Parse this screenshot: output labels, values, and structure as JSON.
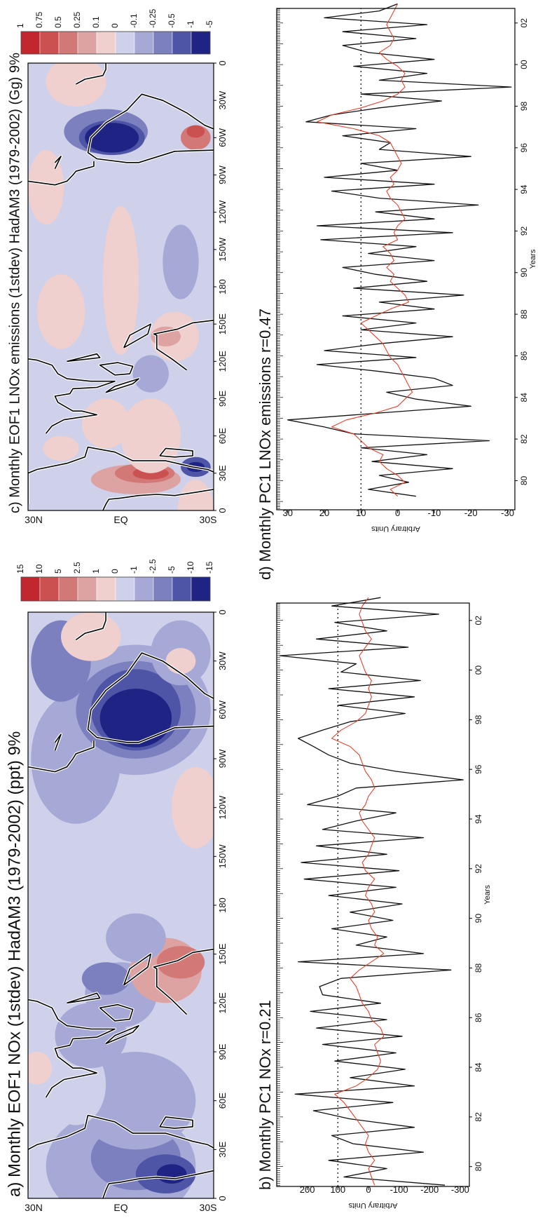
{
  "chart_data": [
    {
      "type": "map",
      "title": "a) Monthly  EOF1 NOx (1stdev) HadAM3 (1979-2002) (ppt)  9%",
      "lat_labels": [
        "30N",
        "EQ",
        "30S"
      ],
      "lon_labels": [
        "0",
        "30E",
        "60E",
        "90E",
        "120E",
        "150E",
        "180",
        "150W",
        "120W",
        "90W",
        "60W",
        "30W",
        "0"
      ],
      "colorbar": {
        "labels": [
          "15",
          "10",
          "5",
          "2.5",
          "1",
          "0",
          "-1",
          "-2.5",
          "-5",
          "-10",
          "-15"
        ],
        "colors": [
          "#c1272d",
          "#cb5150",
          "#d27877",
          "#dda3a2",
          "#efd0cf",
          "#cfd1ea",
          "#a6a8d6",
          "#7c80bf",
          "#4f55a6",
          "#1f2484"
        ]
      }
    },
    {
      "type": "line",
      "title": "b) Monthly  PC1 NOx r=0.21",
      "xlabel": "Years",
      "ylabel": "Arbitrary Units",
      "xlim": [
        1979.2,
        2002.7
      ],
      "ylim": [
        -330,
        300
      ],
      "xticks": [
        {
          "value": 1980,
          "label": "80"
        },
        {
          "value": 1982,
          "label": "82"
        },
        {
          "value": 1984,
          "label": "84"
        },
        {
          "value": 1986,
          "label": "86"
        },
        {
          "value": 1988,
          "label": "88"
        },
        {
          "value": 1990,
          "label": "90"
        },
        {
          "value": 1992,
          "label": "92"
        },
        {
          "value": 1994,
          "label": "94"
        },
        {
          "value": 1996,
          "label": "96"
        },
        {
          "value": 1998,
          "label": "98"
        },
        {
          "value": 2000,
          "label": "00"
        },
        {
          "value": 2002,
          "label": "02"
        }
      ],
      "yticks": [
        200,
        100,
        0,
        -100,
        -200,
        -300
      ],
      "hline": 100,
      "x": [
        1979.25,
        1979.58,
        1979.92,
        1980.25,
        1980.58,
        1980.92,
        1981.25,
        1981.58,
        1981.92,
        1982.25,
        1982.58,
        1982.92,
        1983.25,
        1983.58,
        1983.92,
        1984.25,
        1984.58,
        1984.92,
        1985.25,
        1985.58,
        1985.92,
        1986.25,
        1986.58,
        1986.92,
        1987.25,
        1987.58,
        1987.92,
        1988.25,
        1988.58,
        1988.92,
        1989.25,
        1989.58,
        1989.92,
        1990.25,
        1990.58,
        1990.92,
        1991.25,
        1991.58,
        1991.92,
        1992.25,
        1992.58,
        1992.92,
        1993.25,
        1993.58,
        1993.92,
        1994.25,
        1994.58,
        1994.92,
        1995.25,
        1995.58,
        1995.92,
        1996.25,
        1996.58,
        1996.92,
        1997.25,
        1997.58,
        1997.92,
        1998.25,
        1998.58,
        1998.92,
        1999.25,
        1999.58,
        1999.92,
        2000.25,
        2000.58,
        2000.92,
        2001.25,
        2001.58,
        2001.92,
        2002.25,
        2002.58,
        2002.92
      ],
      "series": [
        {
          "color": "#111111",
          "values": [
            -250,
            80,
            -60,
            130,
            -180,
            50,
            120,
            -150,
            60,
            180,
            -80,
            240,
            -150,
            60,
            -120,
            110,
            -90,
            150,
            -110,
            170,
            -60,
            190,
            -40,
            150,
            160,
            90,
            -270,
            230,
            -180,
            40,
            -60,
            120,
            -80,
            60,
            -110,
            130,
            -90,
            210,
            -100,
            220,
            -60,
            170,
            -180,
            150,
            40,
            -90,
            200,
            100,
            40,
            -310,
            -90,
            60,
            130,
            180,
            230,
            150,
            60,
            -120,
            100,
            -150,
            130,
            -170,
            90,
            40,
            290,
            -130,
            170,
            -60,
            110,
            -230,
            120,
            -40
          ]
        },
        {
          "color": "#e0452f",
          "values": [
            -20,
            -10,
            0,
            -20,
            0,
            10,
            0,
            20,
            40,
            60,
            80,
            110,
            40,
            0,
            -30,
            -40,
            -30,
            -20,
            -50,
            -40,
            -10,
            0,
            20,
            30,
            40,
            60,
            30,
            -10,
            -50,
            -20,
            -30,
            -10,
            0,
            -20,
            -10,
            10,
            0,
            -20,
            10,
            20,
            0,
            -10,
            -20,
            0,
            20,
            30,
            10,
            0,
            -20,
            -10,
            10,
            20,
            30,
            60,
            120,
            90,
            40,
            10,
            0,
            -10,
            0,
            -10,
            10,
            20,
            30,
            10,
            -10,
            10,
            20,
            30,
            20,
            0
          ]
        }
      ]
    },
    {
      "type": "map",
      "title": "c) Monthly  EOF1 LNOx emissions (1stdev) HadAM3 (1979-2002) (Gg)  9%",
      "lat_labels": [
        "30N",
        "EQ",
        "30S"
      ],
      "lon_labels": [
        "0",
        "30E",
        "60E",
        "90E",
        "120E",
        "150E",
        "180",
        "150W",
        "120W",
        "90W",
        "60W",
        "30W",
        "0"
      ],
      "colorbar": {
        "labels": [
          "1",
          "0.75",
          "0.5",
          "0.25",
          "0.1",
          "0",
          "-0.1",
          "-0.25",
          "-0.5",
          "-1",
          "-5"
        ],
        "colors": [
          "#c1272d",
          "#cb5150",
          "#d27877",
          "#dda3a2",
          "#efd0cf",
          "#cfd1ea",
          "#a6a8d6",
          "#7c80bf",
          "#4f55a6",
          "#1f2484"
        ]
      }
    },
    {
      "type": "line",
      "title": "d) Monthly  PC1 LNOx emissions r=0.47",
      "xlabel": "Years",
      "ylabel": "Arbitrary Units",
      "xlim": [
        1978.6,
        2002.7
      ],
      "ylim": [
        -32,
        33
      ],
      "xticks": [
        {
          "value": 1980,
          "label": "80"
        },
        {
          "value": 1982,
          "label": "82"
        },
        {
          "value": 1984,
          "label": "84"
        },
        {
          "value": 1986,
          "label": "86"
        },
        {
          "value": 1988,
          "label": "88"
        },
        {
          "value": 1990,
          "label": "90"
        },
        {
          "value": 1992,
          "label": "92"
        },
        {
          "value": 1994,
          "label": "94"
        },
        {
          "value": 1996,
          "label": "96"
        },
        {
          "value": 1998,
          "label": "98"
        },
        {
          "value": 2000,
          "label": "00"
        },
        {
          "value": 2002,
          "label": "02"
        }
      ],
      "yticks": [
        30,
        20,
        10,
        0,
        -10,
        -20,
        -30
      ],
      "hline": 10,
      "x": [
        1979.25,
        1979.58,
        1979.92,
        1980.25,
        1980.58,
        1980.92,
        1981.25,
        1981.58,
        1981.92,
        1982.25,
        1982.58,
        1982.92,
        1983.25,
        1983.58,
        1983.92,
        1984.25,
        1984.58,
        1984.92,
        1985.25,
        1985.58,
        1985.92,
        1986.25,
        1986.58,
        1986.92,
        1987.25,
        1987.58,
        1987.92,
        1988.25,
        1988.58,
        1988.92,
        1989.25,
        1989.58,
        1989.92,
        1990.25,
        1990.58,
        1990.92,
        1991.25,
        1991.58,
        1991.92,
        1992.25,
        1992.58,
        1992.92,
        1993.25,
        1993.58,
        1993.92,
        1994.25,
        1994.58,
        1994.92,
        1995.25,
        1995.58,
        1995.92,
        1996.25,
        1996.58,
        1996.92,
        1997.25,
        1997.58,
        1997.92,
        1998.25,
        1998.58,
        1998.92,
        1999.25,
        1999.58,
        1999.92,
        2000.25,
        2000.58,
        2000.92,
        2001.25,
        2001.58,
        2001.92,
        2002.25,
        2002.58,
        2002.92
      ],
      "series": [
        {
          "color": "#111111",
          "values": [
            -5,
            8,
            -3,
            5,
            -15,
            7,
            -8,
            10,
            -25,
            12,
            20,
            30,
            5,
            -20,
            -5,
            3,
            -15,
            -10,
            5,
            22,
            -5,
            20,
            5,
            -15,
            10,
            -5,
            15,
            -10,
            5,
            -18,
            12,
            -8,
            6,
            15,
            -10,
            8,
            -5,
            21,
            -15,
            22,
            -10,
            6,
            -22,
            5,
            18,
            -10,
            20,
            0,
            10,
            -20,
            5,
            2,
            15,
            -5,
            25,
            18,
            5,
            -12,
            10,
            -31,
            5,
            -8,
            12,
            -10,
            8,
            15,
            -5,
            15,
            -8,
            20,
            5,
            0
          ]
        },
        {
          "color": "#e0452f",
          "values": [
            0,
            2,
            -2,
            0,
            3,
            5,
            4,
            8,
            10,
            12,
            18,
            14,
            6,
            0,
            -2,
            -4,
            -3,
            -2,
            -1,
            0,
            2,
            3,
            4,
            6,
            8,
            10,
            6,
            2,
            -3,
            -2,
            0,
            2,
            1,
            3,
            1,
            2,
            4,
            0,
            1,
            0,
            -2,
            -1,
            0,
            2,
            3,
            1,
            2,
            0,
            -1,
            0,
            1,
            2,
            5,
            12,
            22,
            18,
            10,
            4,
            0,
            -2,
            -1,
            -2,
            0,
            3,
            5,
            2,
            1,
            2,
            3,
            2,
            1,
            0
          ]
        }
      ]
    }
  ]
}
